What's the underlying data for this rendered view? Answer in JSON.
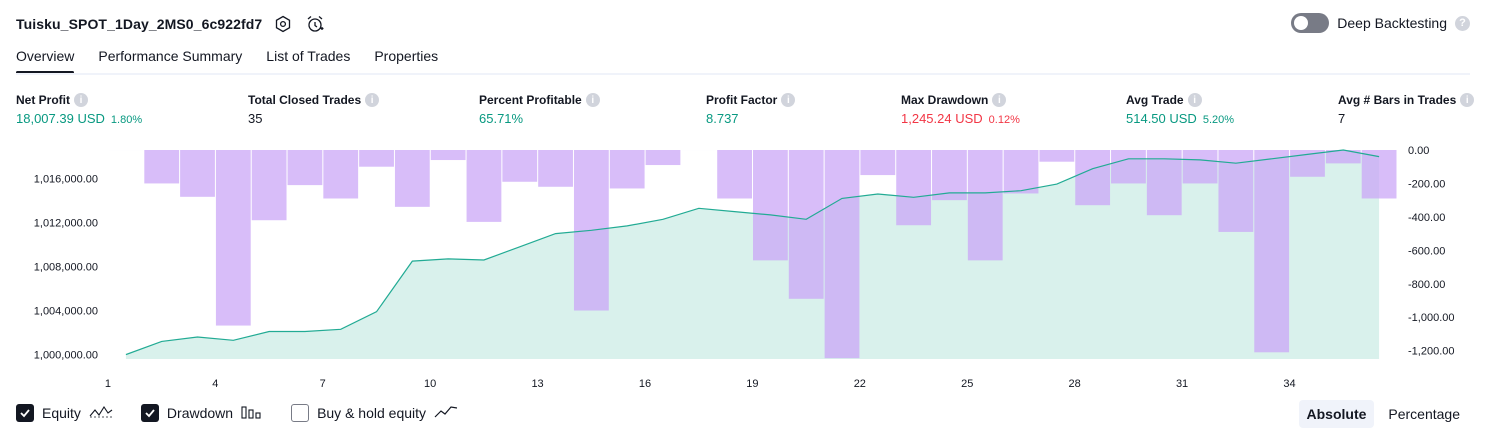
{
  "header": {
    "title": "Tuisku_SPOT_1Day_2MS0_6c922fd7",
    "settings_icon": "gear-icon",
    "alert_icon": "alarm-clock-icon"
  },
  "deep_backtesting": {
    "label": "Deep Backtesting",
    "enabled": false,
    "help": "?"
  },
  "tabs": [
    {
      "label": "Overview",
      "active": true
    },
    {
      "label": "Performance Summary",
      "active": false
    },
    {
      "label": "List of Trades",
      "active": false
    },
    {
      "label": "Properties",
      "active": false
    }
  ],
  "metrics": {
    "net_profit": {
      "label": "Net Profit",
      "value": "18,007.39 USD",
      "pct": "1.80%"
    },
    "total_closed_trades": {
      "label": "Total Closed Trades",
      "value": "35"
    },
    "percent_profitable": {
      "label": "Percent Profitable",
      "value": "65.71%"
    },
    "profit_factor": {
      "label": "Profit Factor",
      "value": "8.737"
    },
    "max_drawdown": {
      "label": "Max Drawdown",
      "value": "1,245.24 USD",
      "pct": "0.12%"
    },
    "avg_trade": {
      "label": "Avg Trade",
      "value": "514.50 USD",
      "pct": "5.20%"
    },
    "avg_bars": {
      "label": "Avg # Bars in Trades",
      "value": "7"
    }
  },
  "colors": {
    "equity_line": "#22ab94",
    "equity_fill": "#d9f1ec",
    "drawdown_bar": "#c9a3f7",
    "positive": "#089981",
    "negative": "#f23645"
  },
  "chart_data": {
    "type": "line",
    "x": [
      1,
      2,
      3,
      4,
      5,
      6,
      7,
      8,
      9,
      10,
      11,
      12,
      13,
      14,
      15,
      16,
      17,
      18,
      19,
      20,
      21,
      22,
      23,
      24,
      25,
      26,
      27,
      28,
      29,
      30,
      31,
      32,
      33,
      34,
      35,
      36
    ],
    "x_ticks": [
      "1",
      "4",
      "7",
      "10",
      "13",
      "16",
      "19",
      "22",
      "25",
      "28",
      "31",
      "34"
    ],
    "series": [
      {
        "values": [
          1000000,
          1001200,
          1001600,
          1001300,
          1002100,
          1002100,
          1002300,
          1003900,
          1008500,
          1008700,
          1008600,
          1009800,
          1011000,
          1011300,
          1011700,
          1012300,
          1013300,
          1013000,
          1012700,
          1012300,
          1014200,
          1014600,
          1014300,
          1014700,
          1014700,
          1014900,
          1015500,
          1016900,
          1017800,
          1017800,
          1017700,
          1017400,
          1017800,
          1018200,
          1018600,
          1018000
        ]
      },
      {
        "values": [
          0,
          -200,
          -280,
          -1050,
          -420,
          -210,
          -290,
          -100,
          -340,
          -60,
          -430,
          -190,
          -220,
          -960,
          -230,
          -90,
          0,
          -290,
          -660,
          -890,
          -1245,
          -150,
          -450,
          -300,
          -660,
          -260,
          -70,
          -330,
          -200,
          -390,
          -200,
          -490,
          -1210,
          -160,
          -80,
          -290
        ]
      }
    ],
    "y_left_ticks": [
      "1,016,000.00",
      "1,012,000.00",
      "1,008,000.00",
      "1,004,000.00",
      "1,000,000.00"
    ],
    "y_left_range": [
      999600,
      1018600
    ],
    "y_right_ticks": [
      "0.00",
      "-200.00",
      "-400.00",
      "-600.00",
      "-800.00",
      "-1,000.00",
      "-1,200.00"
    ],
    "y_right_range": [
      -1250,
      0
    ],
    "grid": false
  },
  "legend": [
    {
      "label": "Equity",
      "checked": true,
      "icon": "equity-line-icon"
    },
    {
      "label": "Drawdown",
      "checked": true,
      "icon": "drawdown-bars-icon"
    },
    {
      "label": "Buy & hold equity",
      "checked": false,
      "icon": "buy-hold-line-icon"
    }
  ],
  "mode": {
    "absolute": "Absolute",
    "percentage": "Percentage",
    "selected": "Absolute"
  }
}
